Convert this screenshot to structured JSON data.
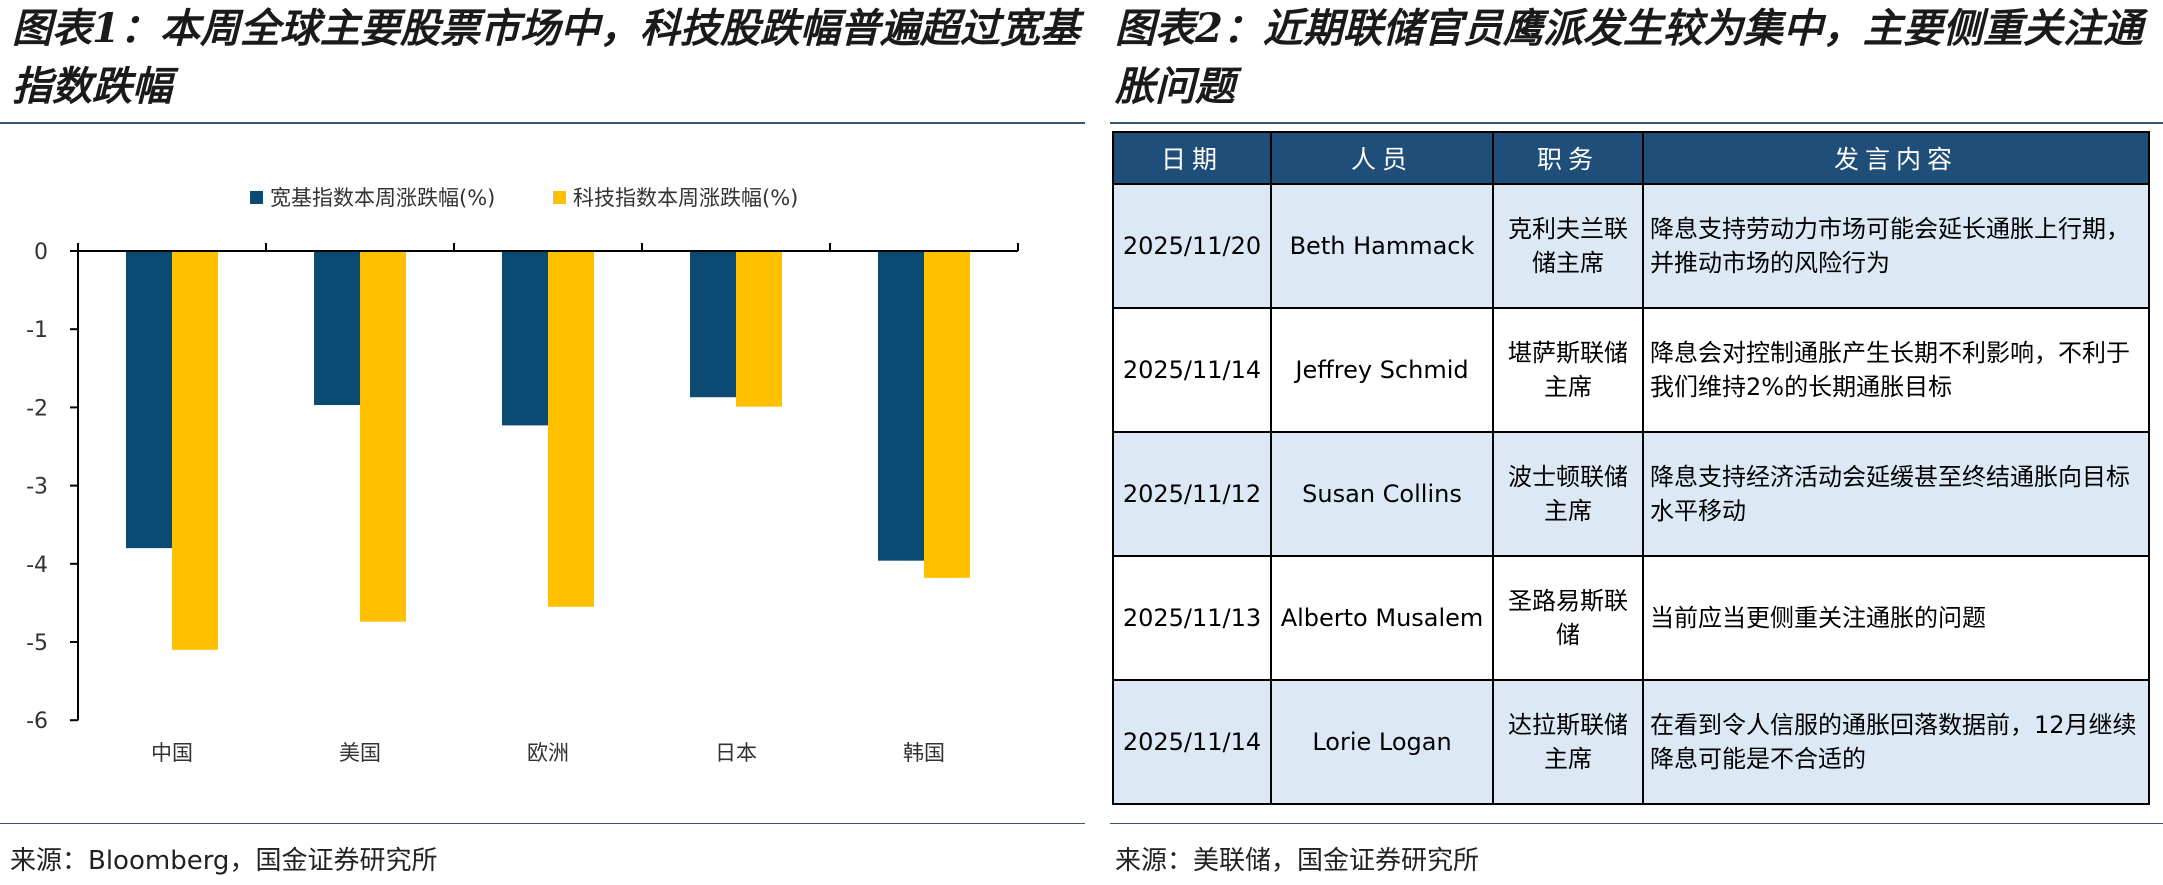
{
  "left": {
    "title": "图表1：本周全球主要股票市场中，科技股跌幅普遍超过宽基指数跌幅",
    "source": "来源：Bloomberg，国金证券研究所"
  },
  "right": {
    "title": "图表2：近期联储官员鹰派发生较为集中，主要侧重关注通胀问题",
    "source": "来源：美联储，国金证券研究所",
    "table": {
      "headers": [
        "日期",
        "人员",
        "职务",
        "发言内容"
      ],
      "rows": [
        {
          "date": "2025/11/20",
          "person": "Beth Hammack",
          "role": "克利夫兰联储主席",
          "content": "降息支持劳动力市场可能会延长通胀上行期，并推动市场的风险行为"
        },
        {
          "date": "2025/11/14",
          "person": "Jeffrey Schmid",
          "role": "堪萨斯联储主席",
          "content": "降息会对控制通胀产生长期不利影响，不利于我们维持2%的长期通胀目标"
        },
        {
          "date": "2025/11/12",
          "person": "Susan Collins",
          "role": "波士顿联储主席",
          "content": "降息支持经济活动会延缓甚至终结通胀向目标水平移动"
        },
        {
          "date": "2025/11/13",
          "person": "Alberto Musalem",
          "role": "圣路易斯联储",
          "content": "当前应当更侧重关注通胀的问题"
        },
        {
          "date": "2025/11/14",
          "person": "Lorie Logan",
          "role": "达拉斯联储主席",
          "content": "在看到令人信服的通胀回落数据前，12月继续降息可能是不合适的"
        }
      ]
    }
  },
  "chart_data": {
    "type": "bar",
    "categories": [
      "中国",
      "美国",
      "欧洲",
      "日本",
      "韩国"
    ],
    "series": [
      {
        "name": "宽基指数本周涨跌幅(%)",
        "color": "#0b4a72",
        "values": [
          -3.8,
          -1.97,
          -2.23,
          -1.87,
          -3.96
        ]
      },
      {
        "name": "科技指数本周涨跌幅(%)",
        "color": "#ffc000",
        "values": [
          -5.1,
          -4.74,
          -4.55,
          -1.99,
          -4.18
        ]
      }
    ],
    "yticks": [
      "0",
      "-1",
      "-2",
      "-3",
      "-4",
      "-5",
      "-6"
    ],
    "ylim": [
      -6,
      0
    ],
    "legend_position": "top",
    "grid": false
  }
}
